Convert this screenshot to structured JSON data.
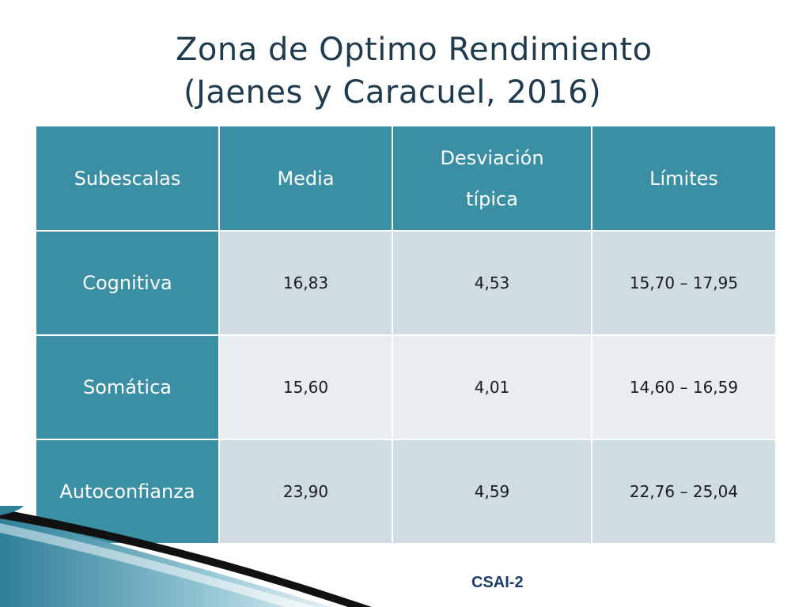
{
  "title": {
    "line1": "Zona de Optimo Rendimiento",
    "line2": "(Jaenes y Caracuel, 2016)"
  },
  "table": {
    "headers": [
      "Subescalas",
      "Media",
      "Desviación típica",
      "Límites"
    ],
    "rows": [
      {
        "subescala": "Cognitiva",
        "media": "16,83",
        "desviacion": "4,53",
        "limites": "15,70 – 17,95"
      },
      {
        "subescala": "Somática",
        "media": "15,60",
        "desviacion": "4,01",
        "limites": "14,60 – 16,59"
      },
      {
        "subescala": "Autoconfianza",
        "media": "23,90",
        "desviacion": "4,59",
        "limites": "22,76 – 25,04"
      }
    ]
  },
  "footer": {
    "label": "CSAI-2"
  },
  "colors": {
    "header_bg": "#3b8fa4",
    "row_odd_bg": "#cfdde3",
    "row_even_bg": "#e7edf1",
    "title_color": "#1f3b4d",
    "footer_color": "#1f3b6b"
  }
}
